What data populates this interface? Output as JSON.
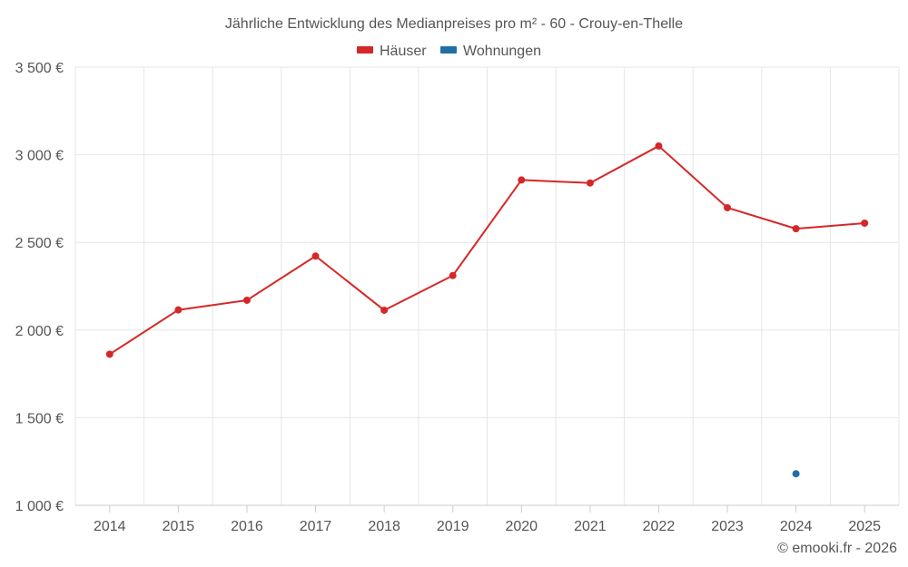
{
  "chart_data": {
    "type": "line",
    "title": "Jährliche Entwicklung des Medianpreises pro m² - 60 - Crouy-en-Thelle",
    "categories": [
      "2014",
      "2015",
      "2016",
      "2017",
      "2018",
      "2019",
      "2020",
      "2021",
      "2022",
      "2023",
      "2024",
      "2025"
    ],
    "ylim": [
      1000,
      3500
    ],
    "yticks": [
      1000,
      1500,
      2000,
      2500,
      3000,
      3500
    ],
    "ytick_labels": [
      "1 000 €",
      "1 500 €",
      "2 000 €",
      "2 500 €",
      "3 000 €",
      "3 500 €"
    ],
    "xlabel": "",
    "ylabel": "",
    "grid": true,
    "legend_position": "top-center",
    "series": [
      {
        "name": "Häuser",
        "color": "#d62728",
        "values": [
          1862,
          2115,
          2170,
          2422,
          2113,
          2311,
          2856,
          2839,
          3050,
          2698,
          2578,
          2610
        ]
      },
      {
        "name": "Wohnungen",
        "color": "#1f6fa5",
        "values": [
          null,
          null,
          null,
          null,
          null,
          null,
          null,
          null,
          null,
          null,
          1180,
          null
        ]
      }
    ]
  },
  "credit": "© emooki.fr - 2026"
}
